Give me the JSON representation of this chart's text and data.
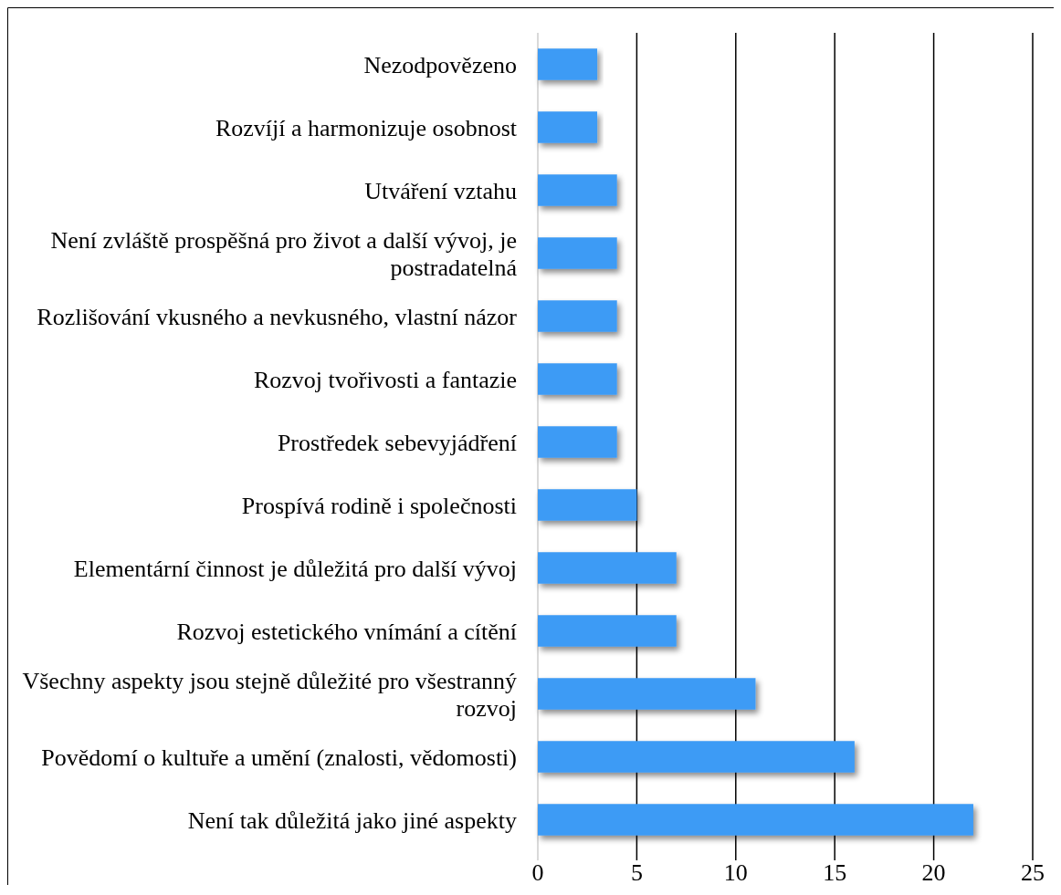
{
  "chart_data": {
    "type": "bar",
    "orientation": "horizontal",
    "categories": [
      "Nezodpovězeno",
      "Rozvíjí a harmonizuje osobnost",
      "Utváření vztahu",
      "Není zvláště prospěšná pro život a další vývoj, je postradatelná",
      "Rozlišování vkusného a nevkusného, vlastní názor",
      "Rozvoj tvořivosti a fantazie",
      "Prostředek sebevyjádření",
      "Prospívá rodině i společnosti",
      "Elementární činnost je důležitá pro další vývoj",
      "Rozvoj estetického vnímání a cítění",
      "Všechny aspekty jsou stejně důležité pro všestranný rozvoj",
      "Povědomí o kultuře a umění (znalosti, vědomosti)",
      "Není tak důležitá jako jiné aspekty"
    ],
    "values": [
      3,
      3,
      4,
      4,
      4,
      4,
      4,
      5,
      7,
      7,
      11,
      16,
      22
    ],
    "color": "#3d9bf5",
    "xlim": [
      0,
      25
    ],
    "xticks": [
      0,
      5,
      10,
      15,
      20,
      25
    ],
    "grid": "x"
  }
}
